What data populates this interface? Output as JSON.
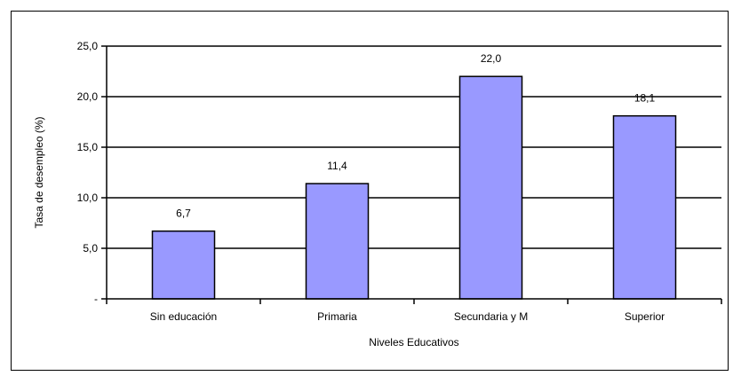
{
  "chart_data": {
    "type": "bar",
    "categories": [
      "Sin educación",
      "Primaria",
      "Secundaria y M",
      "Superior"
    ],
    "values": [
      6.7,
      11.4,
      22.0,
      18.1
    ],
    "data_labels": [
      "6,7",
      "11,4",
      "22,0",
      "18,1"
    ],
    "title": "",
    "xlabel": "Niveles Educativos",
    "ylabel": "Tasa de desempleo (%)",
    "ylim": [
      0,
      25
    ],
    "yticks": [
      0,
      5,
      10,
      15,
      20,
      25
    ],
    "ytick_labels": [
      "-",
      "5,0",
      "10,0",
      "15,0",
      "20,0",
      "25,0"
    ],
    "grid": true,
    "legend": "none",
    "colors": {
      "bar_fill": "#9999ff",
      "bar_stroke": "#000000",
      "grid": "#000000",
      "background": "#ffffff"
    }
  }
}
